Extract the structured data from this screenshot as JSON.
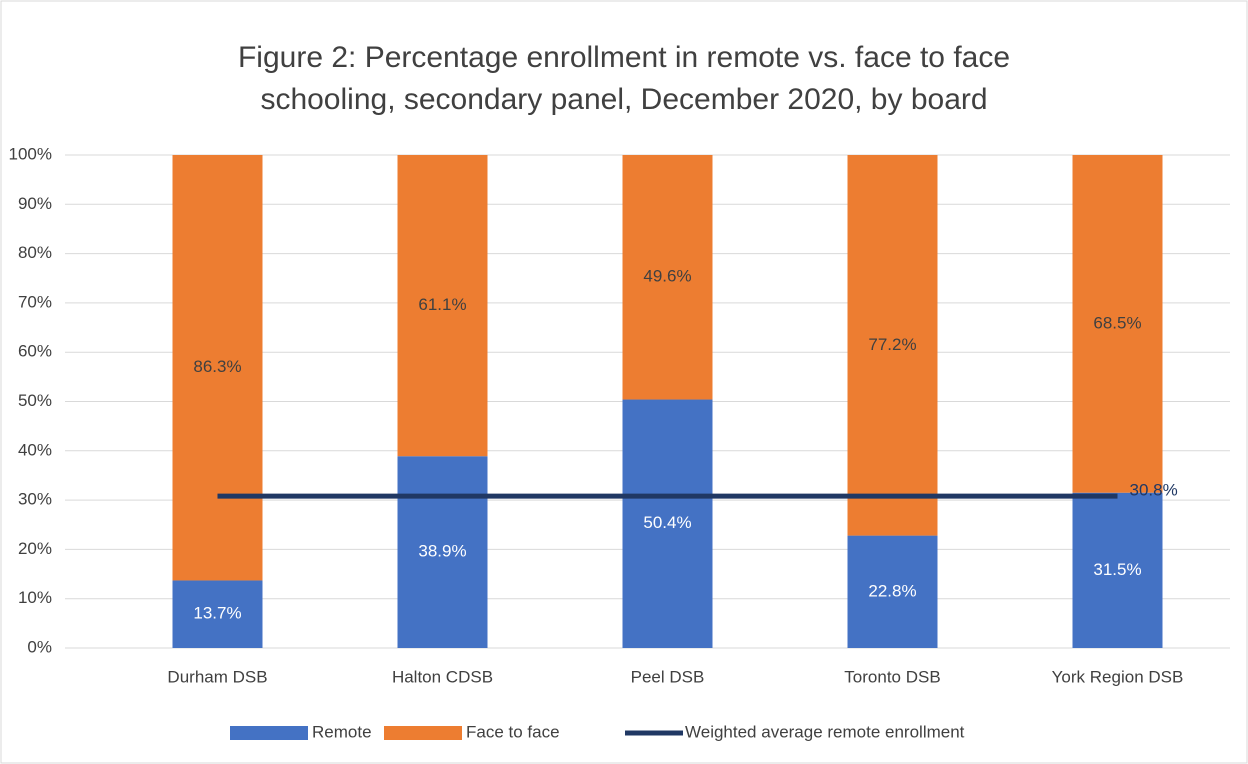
{
  "chart_data": {
    "type": "bar",
    "stacked": true,
    "title": [
      "Figure 2: Percentage enrollment in remote vs. face to face",
      "schooling, secondary panel, December 2020, by board"
    ],
    "categories": [
      "Durham DSB",
      "Halton CDSB",
      "Peel DSB",
      "Toronto DSB",
      "York Region DSB"
    ],
    "series": [
      {
        "name": "Remote",
        "type": "bar",
        "color": "#4472c4",
        "label_color": "#ffffff",
        "values": [
          13.7,
          38.9,
          50.4,
          22.8,
          31.5
        ],
        "value_labels": [
          "13.7%",
          "38.9%",
          "50.4%",
          "22.8%",
          "31.5%"
        ]
      },
      {
        "name": "Face to face",
        "type": "bar",
        "color": "#ed7d31",
        "label_color": "#404040",
        "values": [
          86.3,
          61.1,
          49.6,
          77.2,
          68.5
        ],
        "value_labels": [
          "86.3%",
          "61.1%",
          "49.6%",
          "77.2%",
          "68.5%"
        ]
      },
      {
        "name": "Weighted average remote enrollment",
        "type": "line",
        "color": "#203864",
        "label_color": "#203864",
        "values": [
          30.8,
          30.8,
          30.8,
          30.8,
          30.8
        ],
        "value_labels": [
          null,
          null,
          null,
          null,
          "30.8%"
        ]
      }
    ],
    "ylim": [
      0,
      100
    ],
    "yticks": [
      {
        "value": 0,
        "label": "0%"
      },
      {
        "value": 10,
        "label": "10%"
      },
      {
        "value": 20,
        "label": "20%"
      },
      {
        "value": 30,
        "label": "30%"
      },
      {
        "value": 40,
        "label": "40%"
      },
      {
        "value": 50,
        "label": "50%"
      },
      {
        "value": 60,
        "label": "60%"
      },
      {
        "value": 70,
        "label": "70%"
      },
      {
        "value": 80,
        "label": "80%"
      },
      {
        "value": 90,
        "label": "90%"
      },
      {
        "value": 100,
        "label": "100%"
      }
    ],
    "grid": true,
    "legend": "bottom"
  }
}
